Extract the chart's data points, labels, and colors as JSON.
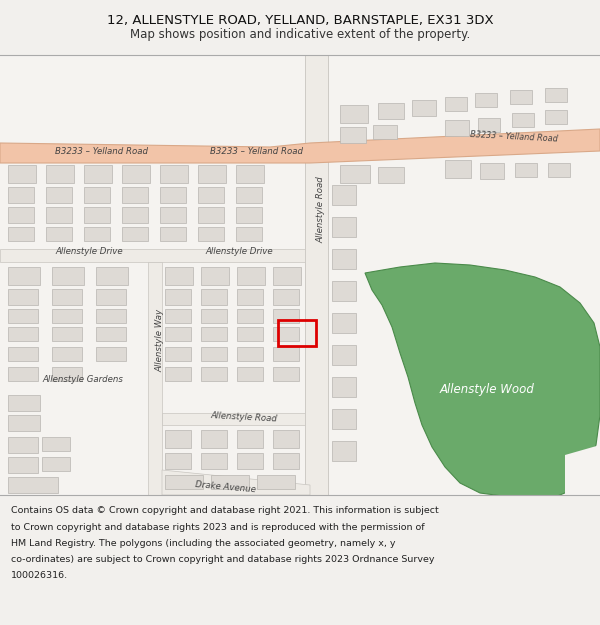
{
  "title_line1": "12, ALLENSTYLE ROAD, YELLAND, BARNSTAPLE, EX31 3DX",
  "title_line2": "Map shows position and indicative extent of the property.",
  "footer_lines": [
    "Contains OS data © Crown copyright and database right 2021. This information is subject",
    "to Crown copyright and database rights 2023 and is reproduced with the permission of",
    "HM Land Registry. The polygons (including the associated geometry, namely x, y",
    "co-ordinates) are subject to Crown copyright and database rights 2023 Ordnance Survey",
    "100026316."
  ],
  "bg_color": "#f2f0ed",
  "map_bg": "#f5f3f0",
  "road_color": "#f2c4a8",
  "road_border": "#d9a888",
  "building_color": "#dedad5",
  "building_edge": "#b8b5b0",
  "road_fill": "#eeebe6",
  "road_edge": "#c8c5c0",
  "wood_color": "#6aaa6a",
  "wood_edge": "#4a8a4a",
  "highlight_color": "#dd0000",
  "label_color": "#444444",
  "white": "#ffffff"
}
